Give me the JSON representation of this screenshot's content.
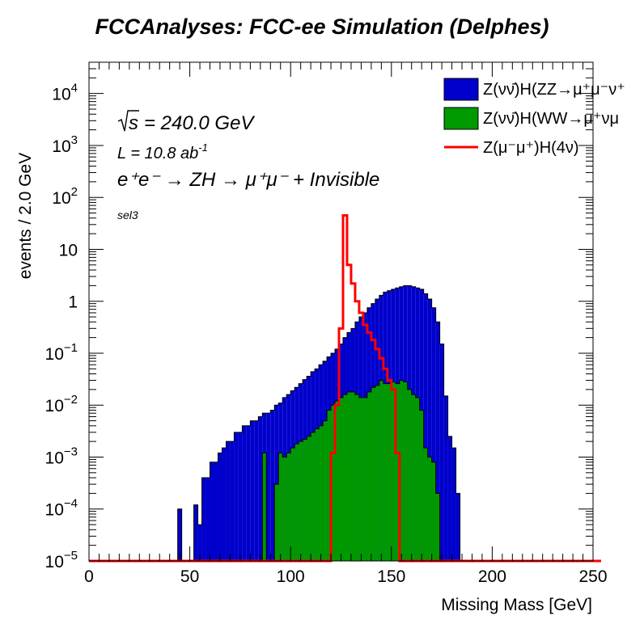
{
  "chart_data": {
    "type": "histogram",
    "title": "FCCAnalyses: FCC-ee Simulation (Delphes)",
    "xlabel": "Missing Mass [GeV]",
    "ylabel": "events / 2.0 GeV",
    "xlim": [
      0,
      250
    ],
    "ylim": [
      1e-05,
      40000
    ],
    "yscale": "log",
    "bin_width": 2.0,
    "x_ticks": [
      0,
      50,
      100,
      150,
      200,
      250
    ],
    "y_ticks": [
      {
        "value": 1e-05,
        "base": "10",
        "exp": "−5"
      },
      {
        "value": 0.0001,
        "base": "10",
        "exp": "−4"
      },
      {
        "value": 0.001,
        "base": "10",
        "exp": "−3"
      },
      {
        "value": 0.01,
        "base": "10",
        "exp": "−2"
      },
      {
        "value": 0.1,
        "base": "10",
        "exp": "−1"
      },
      {
        "value": 1,
        "base": "1",
        "exp": ""
      },
      {
        "value": 10,
        "base": "10",
        "exp": ""
      },
      {
        "value": 100,
        "base": "10",
        "exp": "2"
      },
      {
        "value": 1000,
        "base": "10",
        "exp": "3"
      },
      {
        "value": 10000,
        "base": "10",
        "exp": "4"
      }
    ],
    "annotations": {
      "sqrt_s": "= 240.0 GeV",
      "lumi": "L = 10.8 ab",
      "lumi_exp": "-1",
      "process": "e⁺e⁻ → ZH → μ⁺μ⁻ + Invisible",
      "selection": "sel3"
    },
    "series": [
      {
        "name": "Z(νν̄)H(ZZ→μ⁺μ⁻ν⁺",
        "color": "#0000cc",
        "style": "filled",
        "stacked_top": true,
        "x_start": 44,
        "values": [
          0.0001,
          0,
          0,
          0,
          0.00012,
          5e-05,
          0.0004,
          0.0004,
          0.0008,
          0.0008,
          0.0012,
          0.0015,
          0.002,
          0.002,
          0.003,
          0.003,
          0.004,
          0.004,
          0.005,
          0.005,
          0.006,
          0.007,
          0.007,
          0.008,
          0.01,
          0.011,
          0.014,
          0.016,
          0.019,
          0.022,
          0.026,
          0.031,
          0.036,
          0.044,
          0.05,
          0.06,
          0.07,
          0.085,
          0.1,
          0.12,
          0.15,
          0.2,
          0.25,
          0.3,
          0.4,
          0.5,
          0.6,
          0.75,
          0.9,
          1.1,
          1.3,
          1.5,
          1.6,
          1.7,
          1.8,
          1.9,
          2.0,
          2.0,
          1.9,
          1.8,
          1.7,
          1.4,
          1.1,
          0.75,
          0.4,
          0.15,
          0.015,
          0.0025,
          0.0015,
          0.0002
        ]
      },
      {
        "name": "Z(νν̄)H(WW→μ⁺νμ",
        "color": "#009900",
        "style": "filled",
        "x_start": 86,
        "values": [
          0.0012,
          0,
          0,
          0.0003,
          0.0012,
          0.001,
          0.0012,
          0.0015,
          0.0018,
          0.002,
          0.0022,
          0.0025,
          0.003,
          0.0035,
          0.004,
          0.005,
          0.008,
          0.01,
          0.012,
          0.014,
          0.016,
          0.018,
          0.018,
          0.016,
          0.014,
          0.014,
          0.018,
          0.022,
          0.024,
          0.03,
          0.026,
          0.026,
          0.028,
          0.026,
          0.03,
          0.028,
          0.02,
          0.016,
          0.014,
          0.008,
          0.0015,
          0.001,
          0.0008,
          0.0002
        ]
      },
      {
        "name": "Z(μ⁻μ⁺)H(4ν)",
        "color": "#ff0000",
        "style": "line",
        "x_start": 0,
        "values": [
          0,
          0,
          0,
          0,
          0,
          0,
          0,
          0,
          0,
          0,
          0,
          0,
          0,
          0,
          0,
          0,
          0,
          0,
          0,
          0,
          0,
          0,
          0,
          0,
          0,
          0,
          0,
          0,
          0,
          0,
          0,
          0,
          0,
          0,
          0,
          0,
          0,
          0,
          0,
          0,
          0,
          0,
          0,
          0,
          0,
          0,
          0,
          0,
          0,
          0,
          0,
          0,
          0,
          0,
          0,
          0,
          0,
          0,
          0,
          0,
          0.0012,
          0.01,
          0.3,
          45,
          5,
          2.2,
          1.0,
          0.6,
          0.35,
          0.25,
          0.18,
          0.12,
          0.08,
          0.05,
          0.03,
          0.02,
          0.0012,
          0,
          0,
          0,
          0,
          0,
          0,
          0,
          0,
          0,
          0,
          0,
          0,
          0,
          0,
          0,
          0,
          0,
          0,
          0,
          0,
          0,
          0,
          0,
          0,
          0,
          0,
          0,
          0,
          0,
          0,
          0,
          0,
          0,
          0,
          0,
          0,
          0,
          0,
          0,
          0,
          0,
          0,
          0,
          0,
          0,
          0,
          0,
          0,
          0,
          0
        ]
      }
    ]
  }
}
